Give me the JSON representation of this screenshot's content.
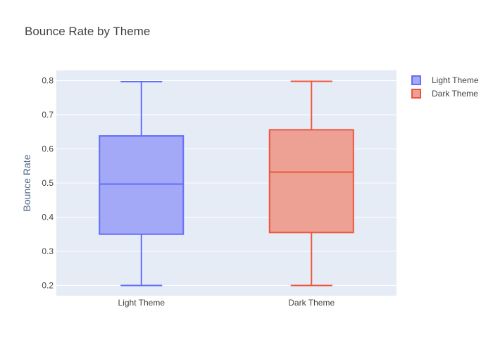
{
  "chart_data": {
    "type": "box",
    "title": "Bounce Rate by Theme",
    "xlabel": "",
    "ylabel": "Bounce Rate",
    "ylim": [
      0.17,
      0.83
    ],
    "yticks": [
      "0.2",
      "0.3",
      "0.4",
      "0.5",
      "0.6",
      "0.7",
      "0.8"
    ],
    "categories": [
      "Light Theme",
      "Dark Theme"
    ],
    "series": [
      {
        "name": "Light Theme",
        "min": 0.2,
        "q1": 0.35,
        "median": 0.497,
        "q3": 0.638,
        "max": 0.797,
        "color": "#636efa",
        "fill": "#a3a9f7"
      },
      {
        "name": "Dark Theme",
        "min": 0.2,
        "q1": 0.355,
        "median": 0.532,
        "q3": 0.656,
        "max": 0.798,
        "color": "#ef553b",
        "fill": "#eda195"
      }
    ],
    "grid": true,
    "legend": "top-right",
    "colors": {
      "plot_bg": "#e5ecf6",
      "grid": "#ffffff"
    }
  }
}
